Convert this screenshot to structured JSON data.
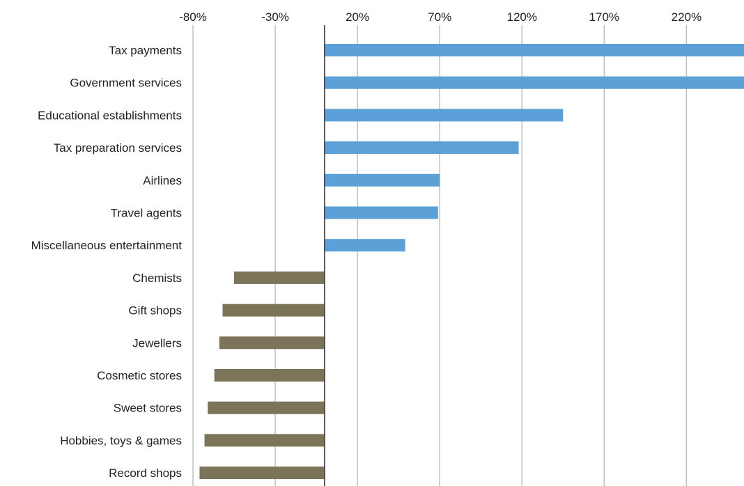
{
  "chart_data": {
    "type": "bar",
    "orientation": "horizontal",
    "title": "",
    "xlabel": "",
    "ylabel": "",
    "xlim": [
      -80,
      255
    ],
    "x_ticks": [
      -80,
      -30,
      20,
      70,
      120,
      170,
      220
    ],
    "x_tick_labels": [
      "-80%",
      "-30%",
      "20%",
      "70%",
      "120%",
      "170%",
      "220%"
    ],
    "x_axis_position": "top",
    "grid": "vertical",
    "legend": "none",
    "categories": [
      "Tax payments",
      "Government services",
      "Educational establishments",
      "Tax preparation services",
      "Airlines",
      "Travel agents",
      "Miscellaneous entertainment",
      "Chemists",
      "Gift shops",
      "Jewellers",
      "Cosmetic stores",
      "Sweet stores",
      "Hobbies, toys & games",
      "Record shops"
    ],
    "values": [
      255,
      255,
      145,
      118,
      70,
      69,
      49,
      -55,
      -62,
      -64,
      -67,
      -71,
      -73,
      -76
    ],
    "colors": {
      "positive": "#5ba0d6",
      "negative": "#7b7458",
      "grid": "#bfbfbf",
      "zero_axis": "#333333"
    }
  }
}
